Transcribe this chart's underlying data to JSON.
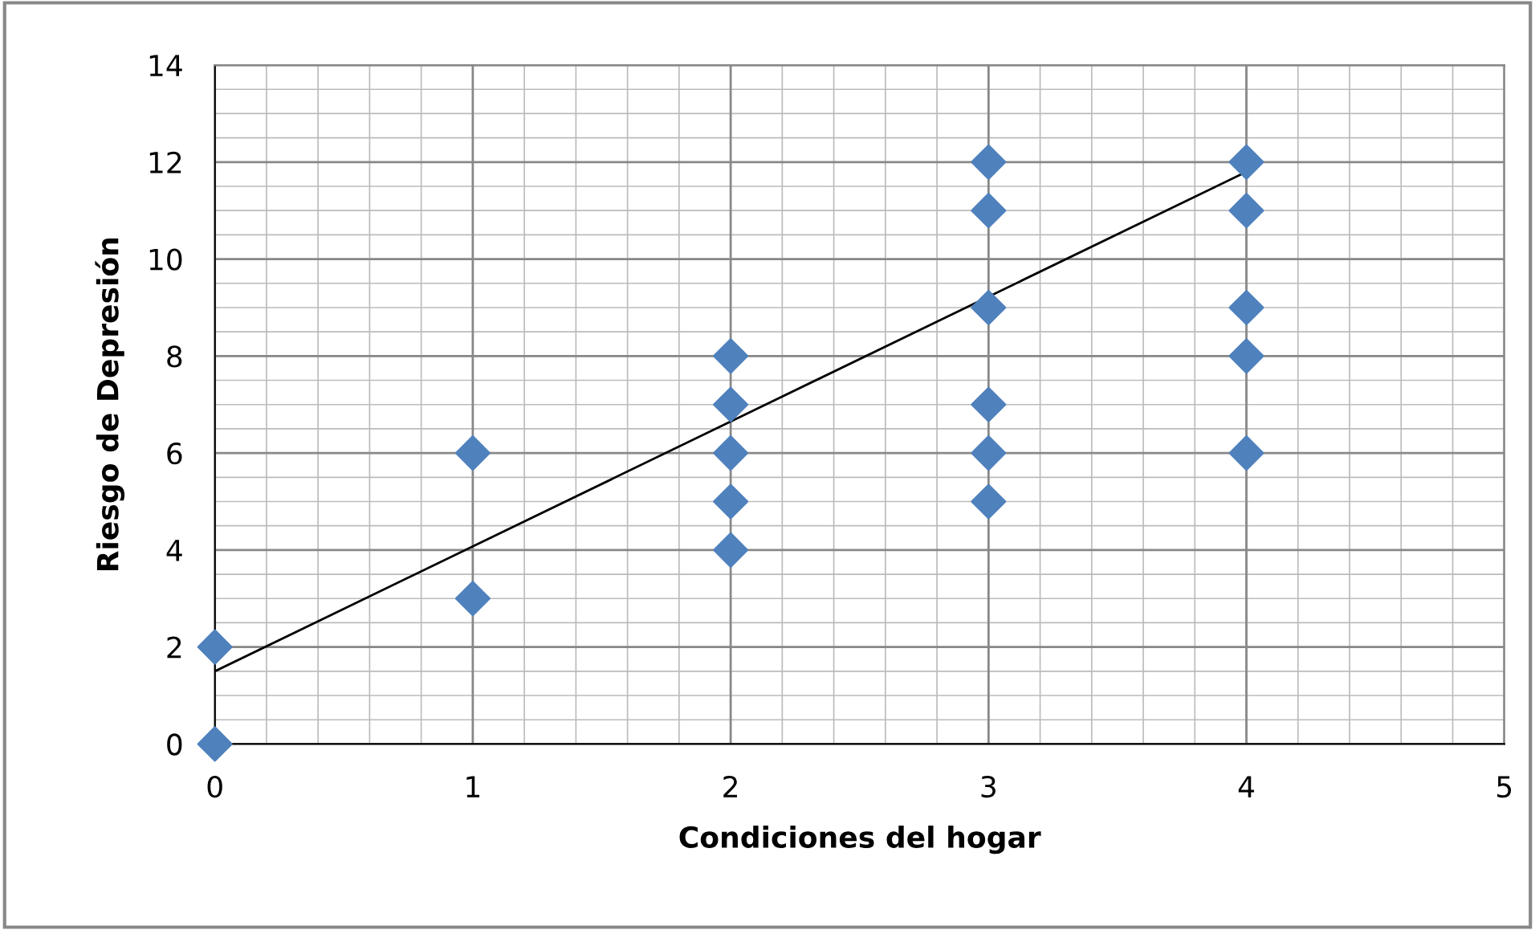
{
  "chart_data": {
    "type": "scatter",
    "xlabel": "Condiciones del hogar",
    "ylabel": "Riesgo de Depresión",
    "xlim": [
      0,
      5
    ],
    "xticks": [
      0,
      1,
      2,
      3,
      4,
      5
    ],
    "ylim": [
      0,
      14
    ],
    "yticks": [
      0,
      2,
      4,
      6,
      8,
      10,
      12,
      14
    ],
    "grid": true,
    "marker": "diamond",
    "legend": false,
    "series": [
      {
        "color": "#4f81bd",
        "x": [
          0,
          0,
          1,
          1,
          2,
          2,
          2,
          2,
          2,
          3,
          3,
          3,
          3,
          3,
          3,
          4,
          4,
          4,
          4,
          4
        ],
        "values": [
          0,
          2,
          3,
          6,
          4,
          5,
          6,
          7,
          8,
          5,
          6,
          7,
          9,
          11,
          12,
          6,
          8,
          9,
          11,
          12
        ]
      },
      {
        "type": "line",
        "color": "#000000",
        "marker": "none",
        "x": [
          0,
          4
        ],
        "values": [
          1.5,
          11.8
        ]
      }
    ]
  }
}
